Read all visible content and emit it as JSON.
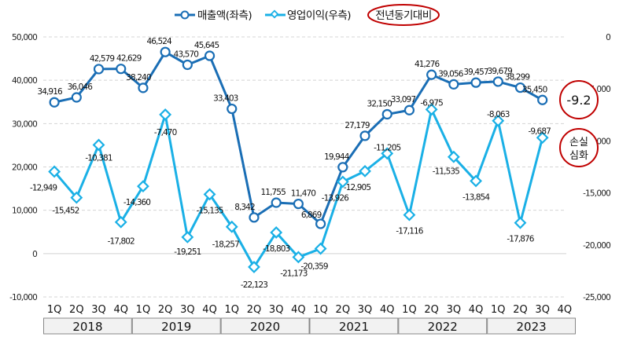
{
  "chart_data": {
    "type": "line",
    "title": "",
    "legend_position": "top",
    "categories": [
      "1Q",
      "2Q",
      "3Q",
      "4Q",
      "1Q",
      "2Q",
      "3Q",
      "4Q",
      "1Q",
      "2Q",
      "3Q",
      "4Q",
      "1Q",
      "2Q",
      "3Q",
      "4Q",
      "1Q",
      "2Q",
      "3Q",
      "4Q",
      "1Q",
      "2Q",
      "3Q",
      "4Q"
    ],
    "years": [
      "2018",
      "2019",
      "2020",
      "2021",
      "2022",
      "2023"
    ],
    "left_axis": {
      "ylim": [
        -10000,
        50000
      ],
      "ticks": [
        "50,000",
        "40,000",
        "30,000",
        "20,000",
        "10,000",
        "0",
        "-10,000"
      ],
      "tick_values": [
        50000,
        40000,
        30000,
        20000,
        10000,
        0,
        -10000
      ]
    },
    "right_axis": {
      "ylim": [
        -25000,
        0
      ],
      "ticks": [
        "0",
        "-5,000",
        "-10,000",
        "-15,000",
        "-20,000",
        "-25,000"
      ],
      "tick_values": [
        0,
        -5000,
        -10000,
        -15000,
        -20000,
        -25000
      ]
    },
    "series": [
      {
        "name": "매출액(좌측)",
        "axis": "left",
        "color": "#1a6eb5",
        "marker": "circle",
        "values": [
          34916,
          36046,
          42579,
          42629,
          38240,
          46524,
          43570,
          45645,
          33403,
          8342,
          11755,
          11470,
          6869,
          19944,
          27179,
          32150,
          33097,
          41276,
          39056,
          39457,
          39679,
          38299,
          35450,
          null
        ],
        "labels": [
          "34,916",
          "36,046",
          "42,579",
          "42,629",
          "38,240",
          "46,524",
          "43,570",
          "45,645",
          "33,403",
          "8,342",
          "11,755",
          "11,470",
          "6,869",
          "19,944",
          "27,179",
          "32,150",
          "33,097",
          "41,276",
          "39,056",
          "39,457",
          "39,679",
          "38,299",
          "35,450",
          null
        ]
      },
      {
        "name": "영업이익(우측)",
        "axis": "right",
        "color": "#1ab0e6",
        "marker": "diamond",
        "values": [
          -12949,
          -15452,
          -10381,
          -17802,
          -14360,
          -7470,
          -19251,
          -15135,
          -18257,
          -22123,
          -18803,
          -21173,
          -20359,
          -13926,
          -12905,
          -11205,
          -17116,
          -6975,
          -11535,
          -13854,
          -8063,
          -17876,
          -9687,
          null
        ],
        "labels": [
          "-12,949",
          "-15,452",
          "-10,381",
          "-17,802",
          "-14,360",
          "-7,470",
          "-19,251",
          "-15,135",
          "-18,257",
          "-22,123",
          "-18,803",
          "-21,173",
          "-20,359",
          "-13,926",
          "-12,905",
          "-11,205",
          "-17,116",
          "-6,975",
          "-11,535",
          "-13,854",
          "-8,063",
          "-17,876",
          "-9,687",
          null
        ]
      }
    ],
    "annotations": {
      "legend_note": "전년동기대비",
      "yoy_value": "-9.2",
      "loss_line1": "손실",
      "loss_line2": "심화",
      "accent": "#c00000"
    }
  }
}
